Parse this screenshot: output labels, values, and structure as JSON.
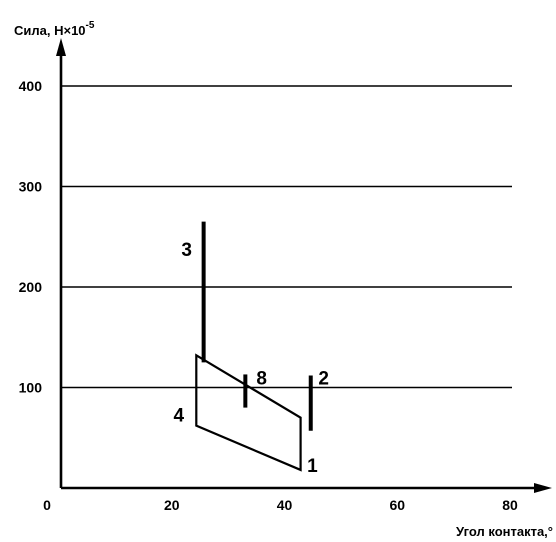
{
  "chart_data": {
    "type": "line",
    "ylabel": "Сила, Н×10",
    "ylabel_exp": "-5",
    "xlabel": "Угол контакта,°",
    "xlim": [
      0,
      80
    ],
    "ylim": [
      0,
      400
    ],
    "xticks": [
      {
        "value": 0,
        "label": "0"
      },
      {
        "value": 20,
        "label": "20"
      },
      {
        "value": 40,
        "label": "40"
      },
      {
        "value": 60,
        "label": "60"
      },
      {
        "value": 80,
        "label": "80"
      }
    ],
    "yticks": [
      {
        "value": 100,
        "label": "100"
      },
      {
        "value": 200,
        "label": "200"
      },
      {
        "value": 300,
        "label": "300"
      },
      {
        "value": 400,
        "label": "400"
      }
    ],
    "gridlines_y": [
      100,
      200,
      300,
      400
    ],
    "region": {
      "name": "",
      "points": [
        [
          24,
          132
        ],
        [
          42.5,
          70
        ],
        [
          42.5,
          18
        ],
        [
          24,
          62
        ]
      ]
    },
    "markers": [
      {
        "label": "3",
        "x": 25.3,
        "y_bottom": 125,
        "y_top": 265
      },
      {
        "label": "8",
        "x": 32.7,
        "y_bottom": 80,
        "y_top": 113
      },
      {
        "label": "2",
        "x": 44.3,
        "y_bottom": 57,
        "y_top": 112
      }
    ],
    "point_labels": [
      {
        "label": "3",
        "x": 22.3,
        "y": 238
      },
      {
        "label": "8",
        "x": 35.6,
        "y": 110
      },
      {
        "label": "2",
        "x": 46.6,
        "y": 110
      },
      {
        "label": "4",
        "x": 20.9,
        "y": 73
      },
      {
        "label": "1",
        "x": 44.6,
        "y": 23
      }
    ],
    "colors": {
      "line": "#000000",
      "background": "#ffffff"
    }
  }
}
